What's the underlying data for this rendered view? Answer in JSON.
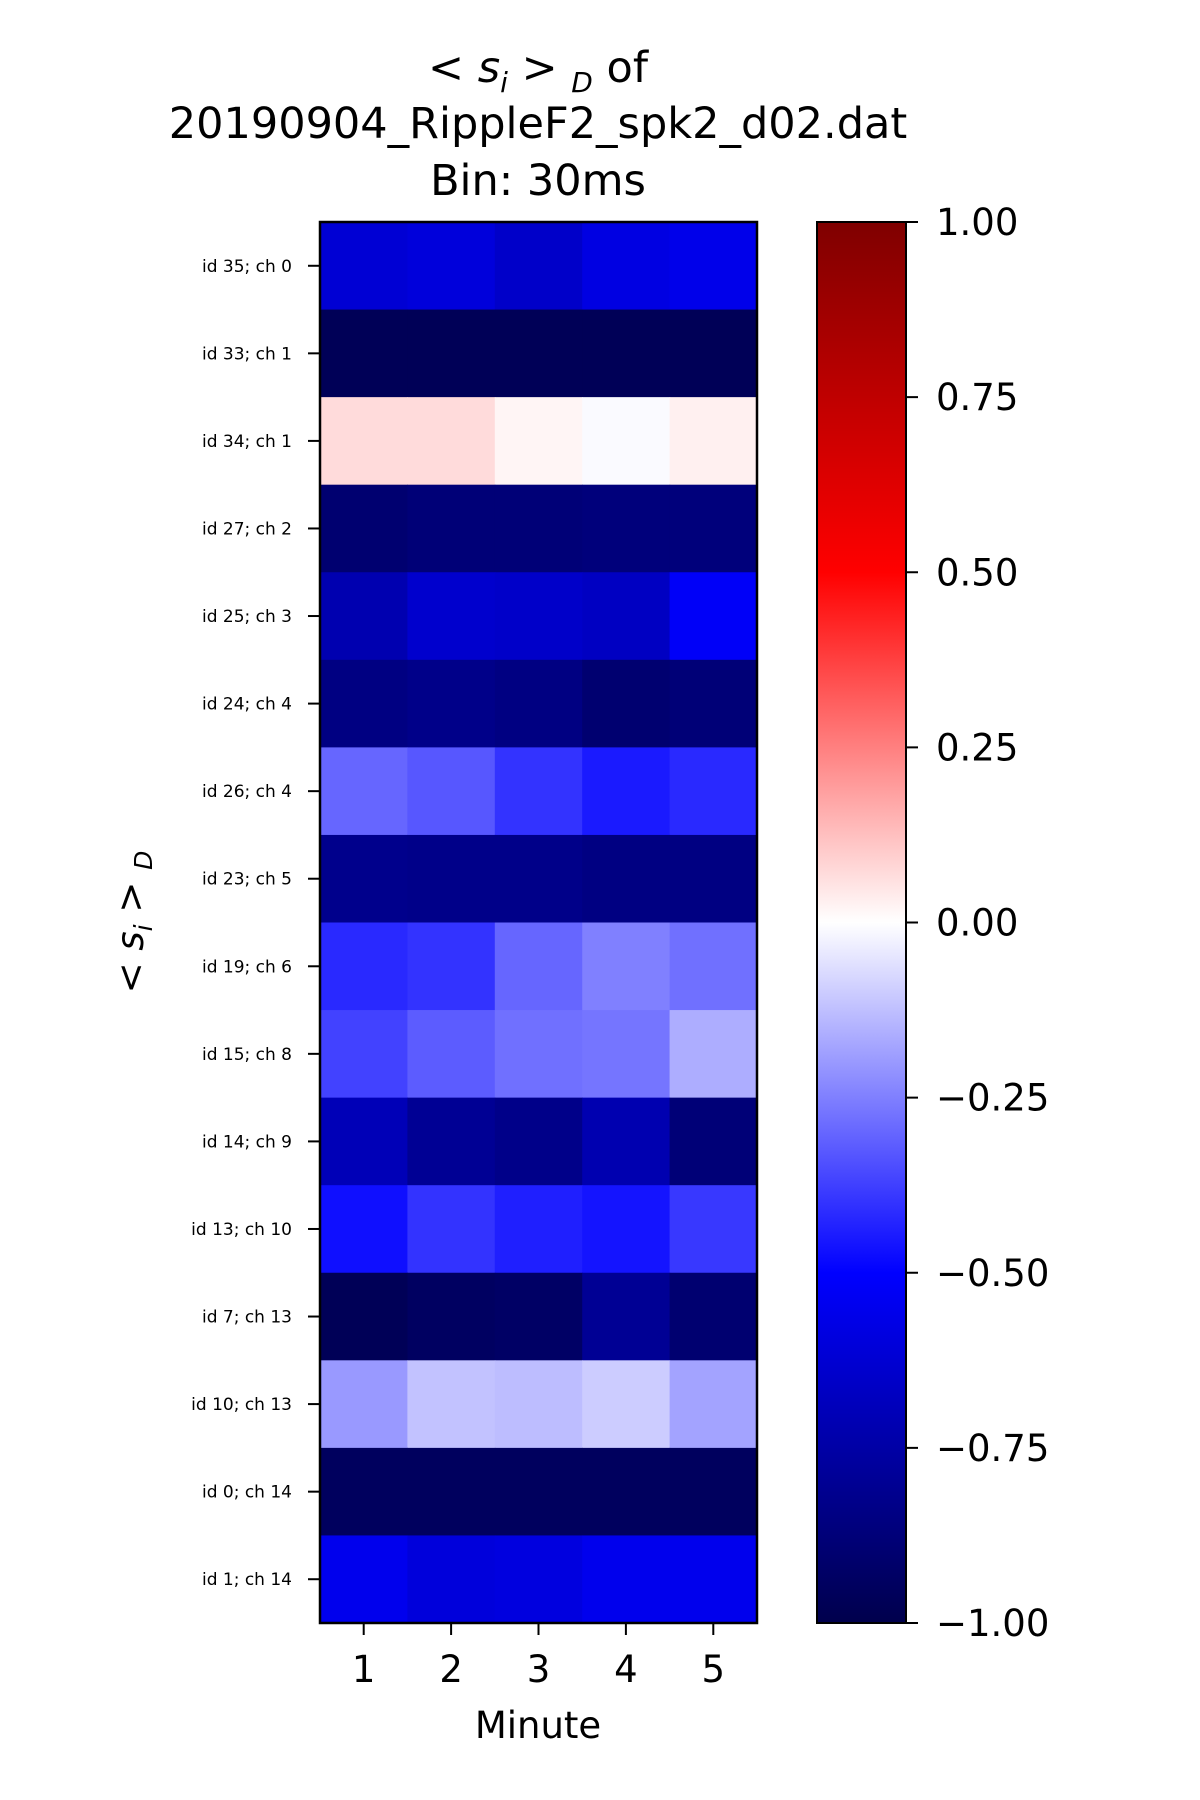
{
  "chart_data": {
    "type": "heatmap",
    "title_lines": [
      "< s",
      "i",
      "> ",
      "D",
      " of",
      "20190904_RippleF2_spk2_d02.dat",
      "Bin: 30ms"
    ],
    "title": {
      "line1": {
        "lt": "<",
        "s": "s",
        "sub_i": "i",
        "gt": ">",
        "sub_D": "D",
        "of": "of"
      },
      "line2": "20190904_RippleF2_spk2_d02.dat",
      "line3": "Bin: 30ms"
    },
    "xlabel": "Minute",
    "ylabel": {
      "lt": "<",
      "s": "s",
      "sub_i": "i",
      "gt": ">",
      "sub_D": "D"
    },
    "x_categories": [
      "1",
      "2",
      "3",
      "4",
      "5"
    ],
    "y_categories": [
      "id 35; ch 0",
      "id 33; ch 1",
      "id 34; ch 1",
      "id 27; ch 2",
      "id 25; ch 3",
      "id 24; ch 4",
      "id 26; ch 4",
      "id 23; ch 5",
      "id 19; ch 6",
      "id 15; ch 8",
      "id 14; ch 9",
      "id 13; ch 10",
      "id 7; ch 13",
      "id 10; ch 13",
      "id 0; ch 14",
      "id 1; ch 14"
    ],
    "values": [
      [
        -0.62,
        -0.6,
        -0.65,
        -0.58,
        -0.56
      ],
      [
        -0.97,
        -0.97,
        -0.97,
        -0.97,
        -0.97
      ],
      [
        0.07,
        0.07,
        0.02,
        -0.01,
        0.03
      ],
      [
        -0.9,
        -0.88,
        -0.88,
        -0.87,
        -0.87
      ],
      [
        -0.72,
        -0.64,
        -0.65,
        -0.67,
        -0.52
      ],
      [
        -0.85,
        -0.83,
        -0.85,
        -0.9,
        -0.88
      ],
      [
        -0.3,
        -0.33,
        -0.4,
        -0.45,
        -0.42
      ],
      [
        -0.82,
        -0.83,
        -0.83,
        -0.85,
        -0.85
      ],
      [
        -0.42,
        -0.4,
        -0.3,
        -0.25,
        -0.28
      ],
      [
        -0.37,
        -0.32,
        -0.28,
        -0.27,
        -0.16
      ],
      [
        -0.7,
        -0.8,
        -0.83,
        -0.72,
        -0.88
      ],
      [
        -0.47,
        -0.4,
        -0.44,
        -0.46,
        -0.39
      ],
      [
        -0.97,
        -0.94,
        -0.93,
        -0.8,
        -0.9
      ],
      [
        -0.2,
        -0.12,
        -0.13,
        -0.1,
        -0.18
      ],
      [
        -0.95,
        -0.95,
        -0.95,
        -0.95,
        -0.95
      ],
      [
        -0.55,
        -0.6,
        -0.59,
        -0.55,
        -0.55
      ]
    ],
    "colormap": "seismic",
    "vmin": -1.0,
    "vmax": 1.0,
    "colorbar_ticks": [
      "1.00",
      "0.75",
      "0.50",
      "0.25",
      "0.00",
      "−0.25",
      "−0.50",
      "−0.75",
      "−1.00"
    ],
    "colorbar_tick_values": [
      1.0,
      0.75,
      0.5,
      0.25,
      0.0,
      -0.25,
      -0.5,
      -0.75,
      -1.0
    ],
    "grid": false,
    "colorbar_position": "right"
  }
}
